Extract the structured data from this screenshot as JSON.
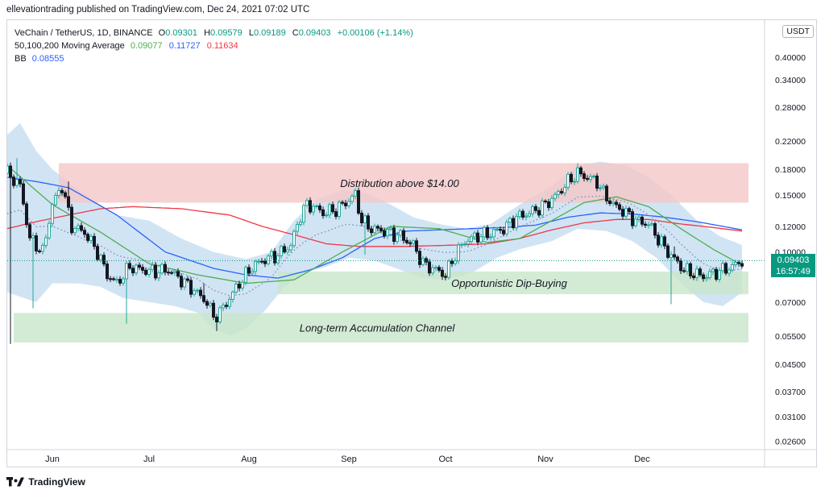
{
  "header": {
    "published_text": "ellevationtrading published on TradingView.com, Dec 24, 2021 07:02 UTC"
  },
  "legend": {
    "symbol": "VeChain / TetherUS, 1D, BINANCE",
    "ohlc": {
      "o_label": "O",
      "o": "0.09301",
      "h_label": "H",
      "h": "0.09579",
      "l_label": "L",
      "l": "0.09189",
      "c_label": "C",
      "c": "0.09403",
      "change": "+0.00106 (+1.14%)"
    },
    "ma_label": "50,100,200 Moving Average",
    "ma_values": [
      "0.09077",
      "0.11727",
      "0.11634"
    ],
    "bb_label": "BB",
    "bb_value": "0.08555"
  },
  "currency_badge": "USDT",
  "last_price": {
    "price": "0.09403",
    "countdown": "16:57:49"
  },
  "footer": {
    "brand": "TradingView"
  },
  "colors": {
    "up": "#26a69a",
    "down": "#131722",
    "ma50": "#4caf50",
    "ma100": "#2962ff",
    "ma200": "#f23645",
    "bb_fill": "#c9dff2",
    "zone_red": "#f4c7c7",
    "zone_green": "#c8e6c9",
    "price_tag": "#089981"
  },
  "chart_data": {
    "type": "candlestick",
    "y_scale": "log",
    "ylim": [
      0.0245,
      0.52
    ],
    "y_ticks": [
      "0.40000",
      "0.34000",
      "0.28000",
      "0.22000",
      "0.18000",
      "0.15000",
      "0.12000",
      "0.10000",
      "0.07000",
      "0.05500",
      "0.04500",
      "0.03700",
      "0.03100",
      "0.02600"
    ],
    "x_labels": [
      {
        "label": "Jun",
        "day": 0
      },
      {
        "label": "Jul",
        "day": 30
      },
      {
        "label": "Aug",
        "day": 61
      },
      {
        "label": "Sep",
        "day": 92
      },
      {
        "label": "Oct",
        "day": 122
      },
      {
        "label": "Nov",
        "day": 153
      },
      {
        "label": "Dec",
        "day": 183
      }
    ],
    "x_range_days": [
      -14,
      221
    ],
    "zones": [
      {
        "label": "Distribution above $14.00",
        "day_start": 2,
        "day_end": 216,
        "low": 0.142,
        "high": 0.188,
        "color": "red"
      },
      {
        "label": "Opportunistic Dip-Buying",
        "day_start": 70,
        "day_end": 216,
        "low": 0.074,
        "high": 0.087,
        "color": "green"
      },
      {
        "label": "Long-term Accumulation Channel",
        "day_start": -12,
        "day_end": 216,
        "low": 0.0525,
        "high": 0.0648,
        "color": "green"
      }
    ],
    "close_keypoints": [
      [
        -14,
        0.175
      ],
      [
        -10,
        0.16
      ],
      [
        -7,
        0.11
      ],
      [
        -3,
        0.1
      ],
      [
        0,
        0.14
      ],
      [
        3,
        0.16
      ],
      [
        6,
        0.12
      ],
      [
        10,
        0.115
      ],
      [
        14,
        0.1
      ],
      [
        17,
        0.085
      ],
      [
        20,
        0.08
      ],
      [
        24,
        0.09
      ],
      [
        28,
        0.088
      ],
      [
        32,
        0.087
      ],
      [
        36,
        0.088
      ],
      [
        40,
        0.082
      ],
      [
        44,
        0.076
      ],
      [
        48,
        0.07
      ],
      [
        50,
        0.063
      ],
      [
        52,
        0.065
      ],
      [
        55,
        0.072
      ],
      [
        58,
        0.08
      ],
      [
        62,
        0.09
      ],
      [
        66,
        0.095
      ],
      [
        70,
        0.098
      ],
      [
        74,
        0.105
      ],
      [
        77,
        0.13
      ],
      [
        79,
        0.14
      ],
      [
        81,
        0.138
      ],
      [
        84,
        0.132
      ],
      [
        88,
        0.135
      ],
      [
        91,
        0.142
      ],
      [
        94,
        0.15
      ],
      [
        96,
        0.125
      ],
      [
        99,
        0.118
      ],
      [
        103,
        0.116
      ],
      [
        108,
        0.112
      ],
      [
        112,
        0.105
      ],
      [
        115,
        0.092
      ],
      [
        119,
        0.088
      ],
      [
        122,
        0.085
      ],
      [
        125,
        0.098
      ],
      [
        128,
        0.108
      ],
      [
        132,
        0.112
      ],
      [
        136,
        0.114
      ],
      [
        140,
        0.118
      ],
      [
        144,
        0.128
      ],
      [
        148,
        0.132
      ],
      [
        152,
        0.138
      ],
      [
        156,
        0.148
      ],
      [
        160,
        0.165
      ],
      [
        163,
        0.175
      ],
      [
        166,
        0.17
      ],
      [
        169,
        0.165
      ],
      [
        171,
        0.152
      ],
      [
        174,
        0.14
      ],
      [
        178,
        0.132
      ],
      [
        181,
        0.125
      ],
      [
        185,
        0.122
      ],
      [
        188,
        0.11
      ],
      [
        191,
        0.1
      ],
      [
        193,
        0.095
      ],
      [
        196,
        0.088
      ],
      [
        199,
        0.086
      ],
      [
        202,
        0.084
      ],
      [
        205,
        0.086
      ],
      [
        208,
        0.088
      ],
      [
        211,
        0.09
      ],
      [
        214,
        0.094
      ]
    ],
    "spikes": [
      {
        "day": -13,
        "low": 0.052
      },
      {
        "day": -11,
        "high": 0.195
      },
      {
        "day": -6,
        "low": 0.067
      },
      {
        "day": 5,
        "high": 0.165
      },
      {
        "day": 23,
        "low": 0.06
      },
      {
        "day": 47,
        "high": 0.08
      },
      {
        "day": 51,
        "low": 0.057
      },
      {
        "day": 95,
        "high": 0.158
      },
      {
        "day": 97,
        "low": 0.098
      },
      {
        "day": 121,
        "low": 0.082
      },
      {
        "day": 163,
        "high": 0.188
      },
      {
        "day": 192,
        "low": 0.069
      },
      {
        "day": 193,
        "high": 0.104
      }
    ],
    "ma50_keypoints": [
      [
        -14,
        0.185
      ],
      [
        0,
        0.14
      ],
      [
        15,
        0.115
      ],
      [
        30,
        0.092
      ],
      [
        45,
        0.085
      ],
      [
        60,
        0.08
      ],
      [
        75,
        0.082
      ],
      [
        90,
        0.1
      ],
      [
        105,
        0.12
      ],
      [
        120,
        0.118
      ],
      [
        135,
        0.107
      ],
      [
        145,
        0.11
      ],
      [
        155,
        0.125
      ],
      [
        165,
        0.142
      ],
      [
        175,
        0.148
      ],
      [
        185,
        0.138
      ],
      [
        195,
        0.118
      ],
      [
        205,
        0.102
      ],
      [
        214,
        0.091
      ]
    ],
    "ma100_keypoints": [
      [
        -14,
        0.17
      ],
      [
        -5,
        0.165
      ],
      [
        5,
        0.158
      ],
      [
        20,
        0.13
      ],
      [
        35,
        0.1
      ],
      [
        50,
        0.089
      ],
      [
        60,
        0.085
      ],
      [
        70,
        0.083
      ],
      [
        80,
        0.088
      ],
      [
        90,
        0.096
      ],
      [
        100,
        0.11
      ],
      [
        110,
        0.116
      ],
      [
        120,
        0.117
      ],
      [
        130,
        0.118
      ],
      [
        140,
        0.119
      ],
      [
        150,
        0.121
      ],
      [
        160,
        0.128
      ],
      [
        170,
        0.132
      ],
      [
        180,
        0.131
      ],
      [
        190,
        0.128
      ],
      [
        200,
        0.124
      ],
      [
        210,
        0.119
      ],
      [
        214,
        0.117
      ]
    ],
    "ma200_keypoints": [
      [
        -14,
        0.118
      ],
      [
        -5,
        0.124
      ],
      [
        5,
        0.13
      ],
      [
        15,
        0.136
      ],
      [
        25,
        0.138
      ],
      [
        40,
        0.136
      ],
      [
        55,
        0.13
      ],
      [
        65,
        0.12
      ],
      [
        75,
        0.113
      ],
      [
        85,
        0.106
      ],
      [
        95,
        0.104
      ],
      [
        110,
        0.104
      ],
      [
        125,
        0.105
      ],
      [
        135,
        0.106
      ],
      [
        145,
        0.11
      ],
      [
        155,
        0.117
      ],
      [
        165,
        0.123
      ],
      [
        175,
        0.126
      ],
      [
        185,
        0.126
      ],
      [
        195,
        0.122
      ],
      [
        205,
        0.119
      ],
      [
        214,
        0.116
      ]
    ],
    "bb_upper_keypoints": [
      [
        -14,
        0.23
      ],
      [
        -10,
        0.25
      ],
      [
        -5,
        0.205
      ],
      [
        0,
        0.18
      ],
      [
        10,
        0.15
      ],
      [
        20,
        0.13
      ],
      [
        30,
        0.125
      ],
      [
        40,
        0.11
      ],
      [
        50,
        0.1
      ],
      [
        60,
        0.095
      ],
      [
        68,
        0.1
      ],
      [
        75,
        0.125
      ],
      [
        82,
        0.145
      ],
      [
        90,
        0.155
      ],
      [
        97,
        0.152
      ],
      [
        105,
        0.14
      ],
      [
        112,
        0.128
      ],
      [
        120,
        0.122
      ],
      [
        128,
        0.118
      ],
      [
        136,
        0.122
      ],
      [
        145,
        0.14
      ],
      [
        155,
        0.16
      ],
      [
        163,
        0.185
      ],
      [
        170,
        0.19
      ],
      [
        178,
        0.185
      ],
      [
        185,
        0.17
      ],
      [
        192,
        0.15
      ],
      [
        200,
        0.125
      ],
      [
        207,
        0.112
      ],
      [
        214,
        0.105
      ]
    ],
    "bb_lower_keypoints": [
      [
        -14,
        0.075
      ],
      [
        -5,
        0.07
      ],
      [
        0,
        0.08
      ],
      [
        8,
        0.08
      ],
      [
        15,
        0.078
      ],
      [
        22,
        0.072
      ],
      [
        30,
        0.07
      ],
      [
        38,
        0.068
      ],
      [
        45,
        0.065
      ],
      [
        50,
        0.058
      ],
      [
        55,
        0.055
      ],
      [
        60,
        0.058
      ],
      [
        66,
        0.066
      ],
      [
        72,
        0.078
      ],
      [
        78,
        0.086
      ],
      [
        85,
        0.09
      ],
      [
        92,
        0.096
      ],
      [
        100,
        0.094
      ],
      [
        108,
        0.088
      ],
      [
        115,
        0.083
      ],
      [
        122,
        0.082
      ],
      [
        130,
        0.086
      ],
      [
        138,
        0.096
      ],
      [
        145,
        0.102
      ],
      [
        155,
        0.108
      ],
      [
        163,
        0.118
      ],
      [
        172,
        0.116
      ],
      [
        180,
        0.108
      ],
      [
        188,
        0.095
      ],
      [
        195,
        0.08
      ],
      [
        202,
        0.07
      ],
      [
        208,
        0.068
      ],
      [
        214,
        0.075
      ]
    ]
  }
}
